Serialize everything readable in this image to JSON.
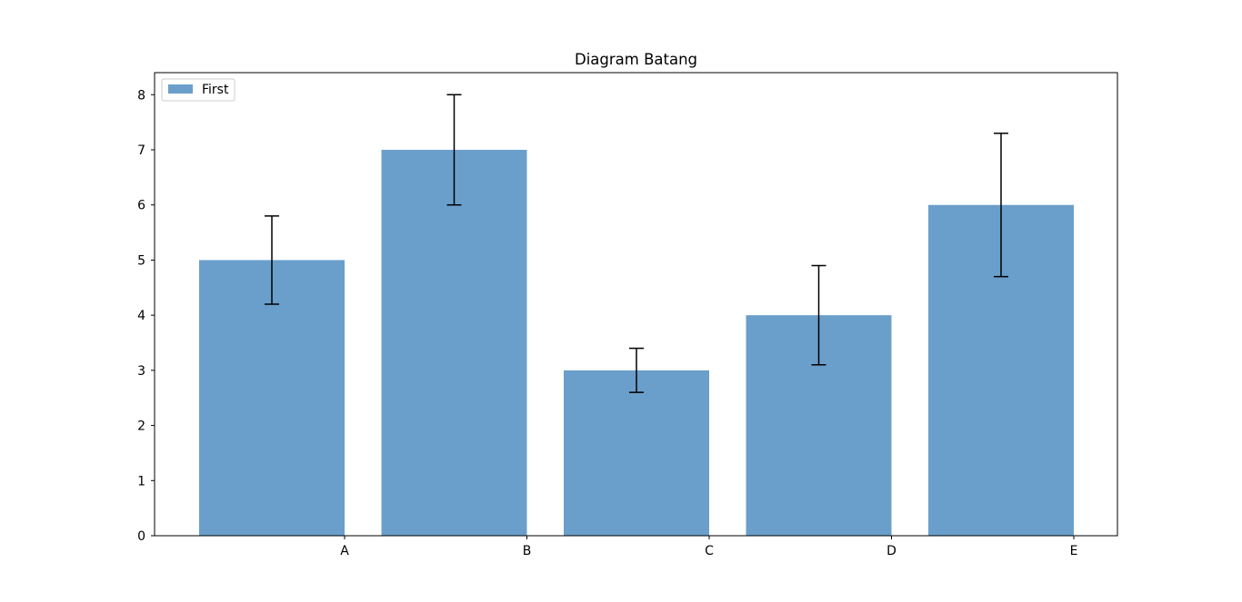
{
  "chart_data": {
    "type": "bar",
    "title": "Diagram Batang",
    "xlabel": "",
    "ylabel": "",
    "categories": [
      "A",
      "B",
      "C",
      "D",
      "E"
    ],
    "series": [
      {
        "name": "First",
        "values": [
          5,
          7,
          3,
          4,
          6
        ],
        "errors": [
          0.8,
          1.0,
          0.4,
          0.9,
          1.3
        ],
        "color": "#6a9fcb"
      }
    ],
    "ylim": [
      0,
      8.4
    ],
    "yticks": [
      0,
      1,
      2,
      3,
      4,
      5,
      6,
      7,
      8
    ],
    "ytick_labels": [
      "0",
      "1",
      "2",
      "3",
      "4",
      "5",
      "6",
      "7",
      "8"
    ],
    "grid": false,
    "legend_position": "top-left",
    "note": "x tick labels are placed at the right edge of each bar"
  }
}
